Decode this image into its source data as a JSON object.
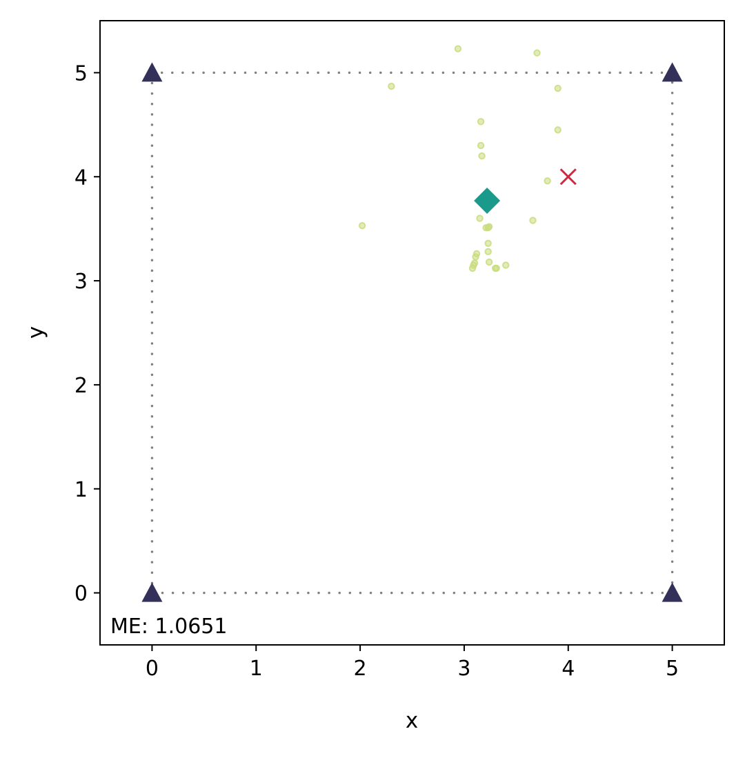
{
  "chart_data": {
    "type": "scatter",
    "title": "",
    "xlabel": "x",
    "ylabel": "y",
    "xlim": [
      -0.5,
      5.5
    ],
    "ylim": [
      -0.5,
      5.5
    ],
    "x_ticks": [
      0,
      1,
      2,
      3,
      4,
      5
    ],
    "y_ticks": [
      0,
      1,
      2,
      3,
      4,
      5
    ],
    "grid": false,
    "legend": "none",
    "annotation": "ME: 1.0651",
    "anchors": {
      "marker": "triangle",
      "color": "#33305a",
      "points": [
        [
          0,
          0
        ],
        [
          5,
          0
        ],
        [
          5,
          5
        ],
        [
          0,
          5
        ]
      ]
    },
    "boundary": {
      "style": "dotted",
      "color": "#808080",
      "points": [
        [
          0,
          0
        ],
        [
          5,
          0
        ],
        [
          5,
          5
        ],
        [
          0,
          5
        ]
      ]
    },
    "estimates": {
      "marker": "circle",
      "color": "#c9dc7e",
      "points": [
        [
          2.94,
          5.23
        ],
        [
          3.7,
          5.19
        ],
        [
          2.3,
          4.87
        ],
        [
          3.9,
          4.85
        ],
        [
          3.16,
          4.53
        ],
        [
          3.9,
          4.45
        ],
        [
          3.16,
          4.3
        ],
        [
          3.17,
          4.2
        ],
        [
          3.8,
          3.96
        ],
        [
          2.02,
          3.53
        ],
        [
          3.15,
          3.6
        ],
        [
          3.66,
          3.58
        ],
        [
          3.21,
          3.51
        ],
        [
          3.23,
          3.51
        ],
        [
          3.24,
          3.52
        ],
        [
          3.23,
          3.36
        ],
        [
          3.23,
          3.28
        ],
        [
          3.12,
          3.26
        ],
        [
          3.11,
          3.23
        ],
        [
          3.24,
          3.18
        ],
        [
          3.1,
          3.17
        ],
        [
          3.09,
          3.15
        ],
        [
          3.4,
          3.15
        ],
        [
          3.08,
          3.12
        ],
        [
          3.3,
          3.12
        ],
        [
          3.31,
          3.12
        ]
      ]
    },
    "mean_estimate": {
      "marker": "diamond",
      "color": "#1a9a8a",
      "point": [
        3.22,
        3.77
      ]
    },
    "true_position": {
      "marker": "x",
      "color": "#cc2a42",
      "point": [
        4.0,
        4.0
      ]
    }
  }
}
